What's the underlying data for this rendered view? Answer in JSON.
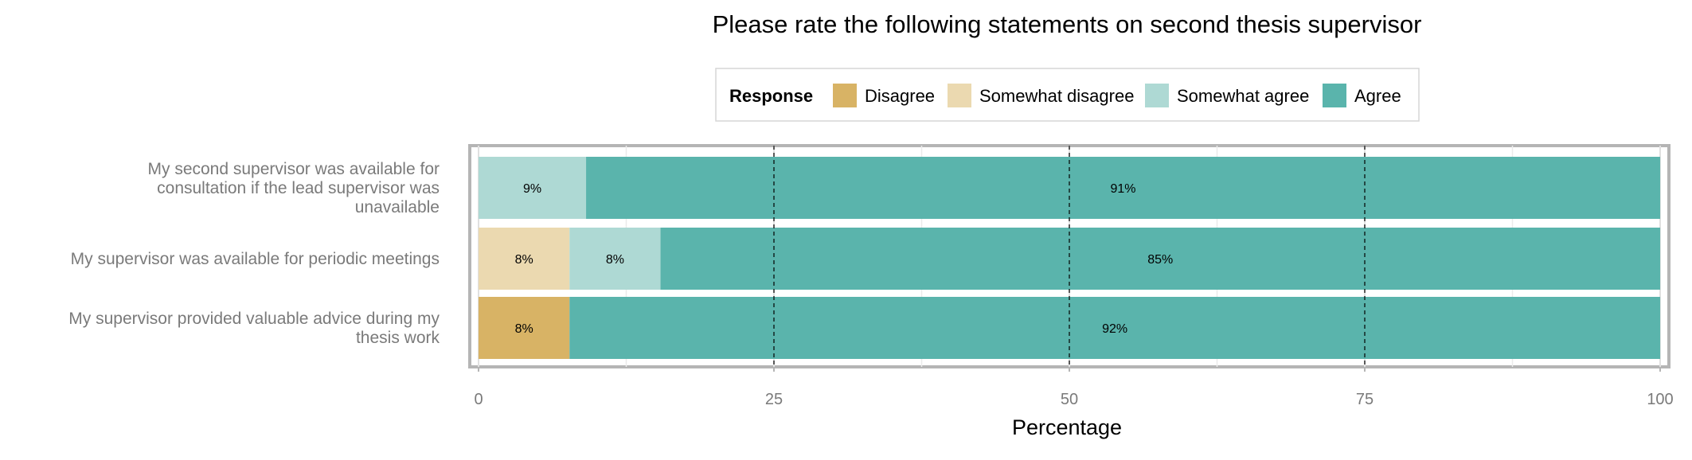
{
  "chart_data": {
    "type": "bar",
    "orientation": "horizontal",
    "stacked": true,
    "title": "Please rate the following statements on second thesis supervisor",
    "xlabel": "Percentage",
    "ylabel": "",
    "xlim": [
      0,
      100
    ],
    "x_ticks": [
      "0",
      "25",
      "50",
      "75",
      "100"
    ],
    "grid": true,
    "legend": {
      "title": "Response",
      "position": "top",
      "entries": [
        "Disagree",
        "Somewhat disagree",
        "Somewhat agree",
        "Agree"
      ]
    },
    "categories": [
      [
        "My second supervisor was available for",
        "consultation if the lead supervisor was",
        "unavailable"
      ],
      [
        "My supervisor was available for periodic meetings"
      ],
      [
        "My supervisor provided valuable advice during my",
        "thesis work"
      ]
    ],
    "series": [
      {
        "name": "Disagree",
        "color": "#d8b365",
        "values": [
          0,
          0,
          7.7
        ],
        "labels": [
          "",
          "",
          "8%"
        ]
      },
      {
        "name": "Somewhat disagree",
        "color": "#ebd9b0",
        "values": [
          0,
          7.7,
          0
        ],
        "labels": [
          "",
          "8%",
          ""
        ]
      },
      {
        "name": "Somewhat agree",
        "color": "#aed9d4",
        "values": [
          9.1,
          7.7,
          0
        ],
        "labels": [
          "9%",
          "8%",
          ""
        ]
      },
      {
        "name": "Agree",
        "color": "#5ab4ac",
        "values": [
          90.9,
          84.6,
          92.3
        ],
        "labels": [
          "91%",
          "85%",
          "92%"
        ]
      }
    ]
  }
}
